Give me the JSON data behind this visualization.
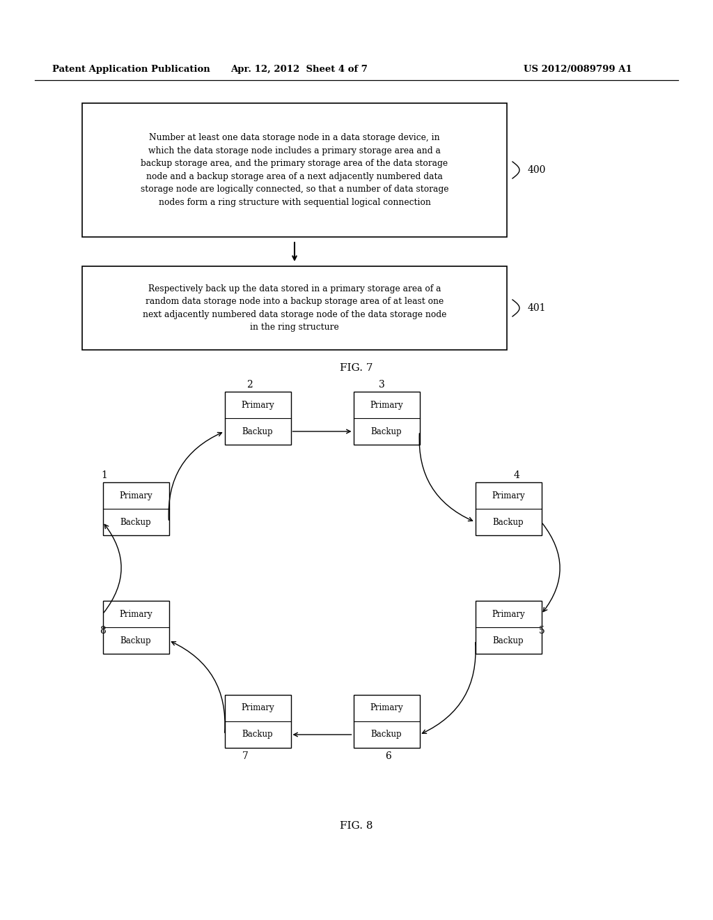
{
  "header_left": "Patent Application Publication",
  "header_mid": "Apr. 12, 2012  Sheet 4 of 7",
  "header_right": "US 2012/0089799 A1",
  "box400_text": "Number at least one data storage node in a data storage device, in\nwhich the data storage node includes a primary storage area and a\nbackup storage area, and the primary storage area of the data storage\nnode and a backup storage area of a next adjacently numbered data\nstorage node are logically connected, so that a number of data storage\nnodes form a ring structure with sequential logical connection",
  "box401_text": "Respectively back up the data stored in a primary storage area of a\nrandom data storage node into a backup storage area of at least one\nnext adjacently numbered data storage node of the data storage node\nin the ring structure",
  "label400": "400",
  "label401": "401",
  "fig7_label": "FIG. 7",
  "fig8_label": "FIG. 8",
  "bg_color": "#ffffff",
  "box_bg": "#ffffff",
  "box_border": "#000000",
  "text_color": "#000000"
}
